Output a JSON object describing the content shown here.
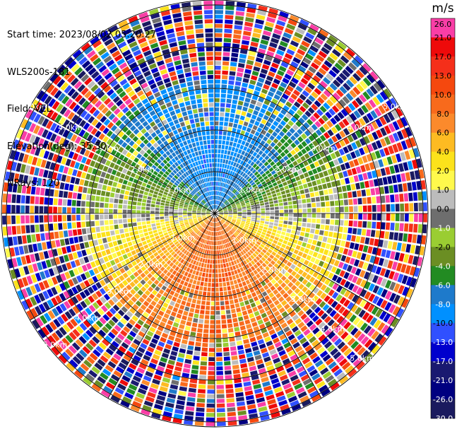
{
  "header": {
    "start_time": "Start time: 2023/08/02 05:20:27",
    "instrument": "WLS200s-181",
    "field": "Field: VEL",
    "elevation": "Elevation(deg): 35.30",
    "nrays": "NRays: 120"
  },
  "chart_data": {
    "type": "heatmap",
    "projection": "polar PPI",
    "field": "VEL",
    "n_rays": 120,
    "range_rings_km": [
      1.0,
      2.0,
      3.0,
      4.0,
      5.0
    ],
    "range_ring_labels": [
      "1.0km",
      "2.0km",
      "3.0km",
      "4.0km",
      "5.0km"
    ],
    "max_range_km": 5.1,
    "spokes": 12,
    "colorbar": {
      "unit": "m/s",
      "boundaries": [
        26.0,
        21.0,
        17.0,
        13.0,
        10.0,
        8.0,
        6.0,
        4.0,
        2.0,
        1.0,
        0.0,
        -1.0,
        -2.0,
        -4.0,
        -6.0,
        -8.0,
        -10.0,
        -13.0,
        -17.0,
        -21.0,
        -26.0,
        -30.0
      ],
      "tick_labels": [
        "26.0",
        "21.0",
        "17.0",
        "13.0",
        "10.0",
        "8.0",
        "6.0",
        "4.0",
        "2.0",
        "1.0",
        "0.0",
        "-1.0",
        "-2.0",
        "-4.0",
        "-6.0",
        "-8.0",
        "-10.0",
        "-13.0",
        "-17.0",
        "-21.0",
        "-26.0",
        "-30.0"
      ],
      "colors": [
        "#f93ea6",
        "#ee0a0a",
        "#f52f1a",
        "#f5480e",
        "#f86a1c",
        "#fb8a2c",
        "#fdbb22",
        "#fce21b",
        "#fff94c",
        "#bcbcbc",
        "#6e6e6e",
        "#9acd32",
        "#6b8e23",
        "#228b22",
        "#1e7acb",
        "#0090ff",
        "#3050ff",
        "#0000cd",
        "#191970",
        "#000080",
        "#1a1a5e"
      ]
    }
  }
}
